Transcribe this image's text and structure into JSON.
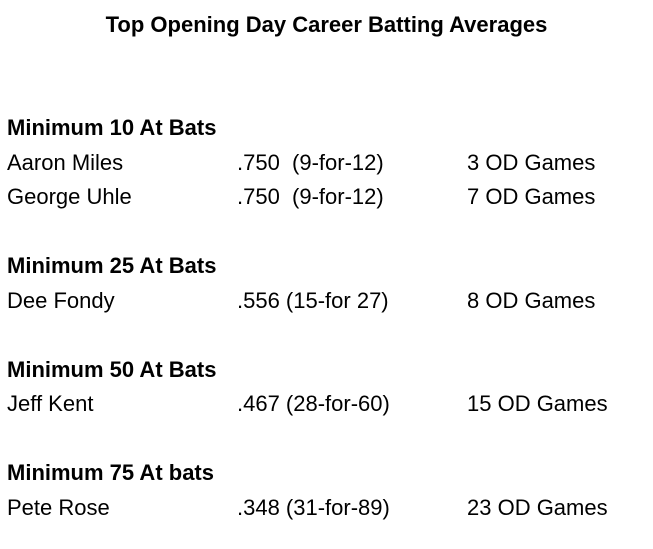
{
  "title": "Top Opening Day Career Batting Averages",
  "sections": [
    {
      "heading": "Minimum 10 At Bats",
      "rows": [
        [
          "Aaron Miles",
          ".750  (9-for-12)",
          "3 OD Games"
        ],
        [
          "George Uhle",
          ".750  (9-for-12)",
          "7 OD Games"
        ]
      ]
    },
    {
      "heading": "Minimum 25 At Bats",
      "rows": [
        [
          "Dee Fondy",
          ".556 (15-for 27)",
          "8 OD Games"
        ]
      ]
    },
    {
      "heading": "Minimum 50 At Bats",
      "rows": [
        [
          "Jeff Kent",
          ".467 (28-for-60)",
          "15 OD Games"
        ]
      ]
    },
    {
      "heading": "Minimum 75 At bats",
      "rows": [
        [
          "Pete Rose",
          ".348 (31-for-89)",
          "23 OD Games"
        ]
      ]
    }
  ]
}
